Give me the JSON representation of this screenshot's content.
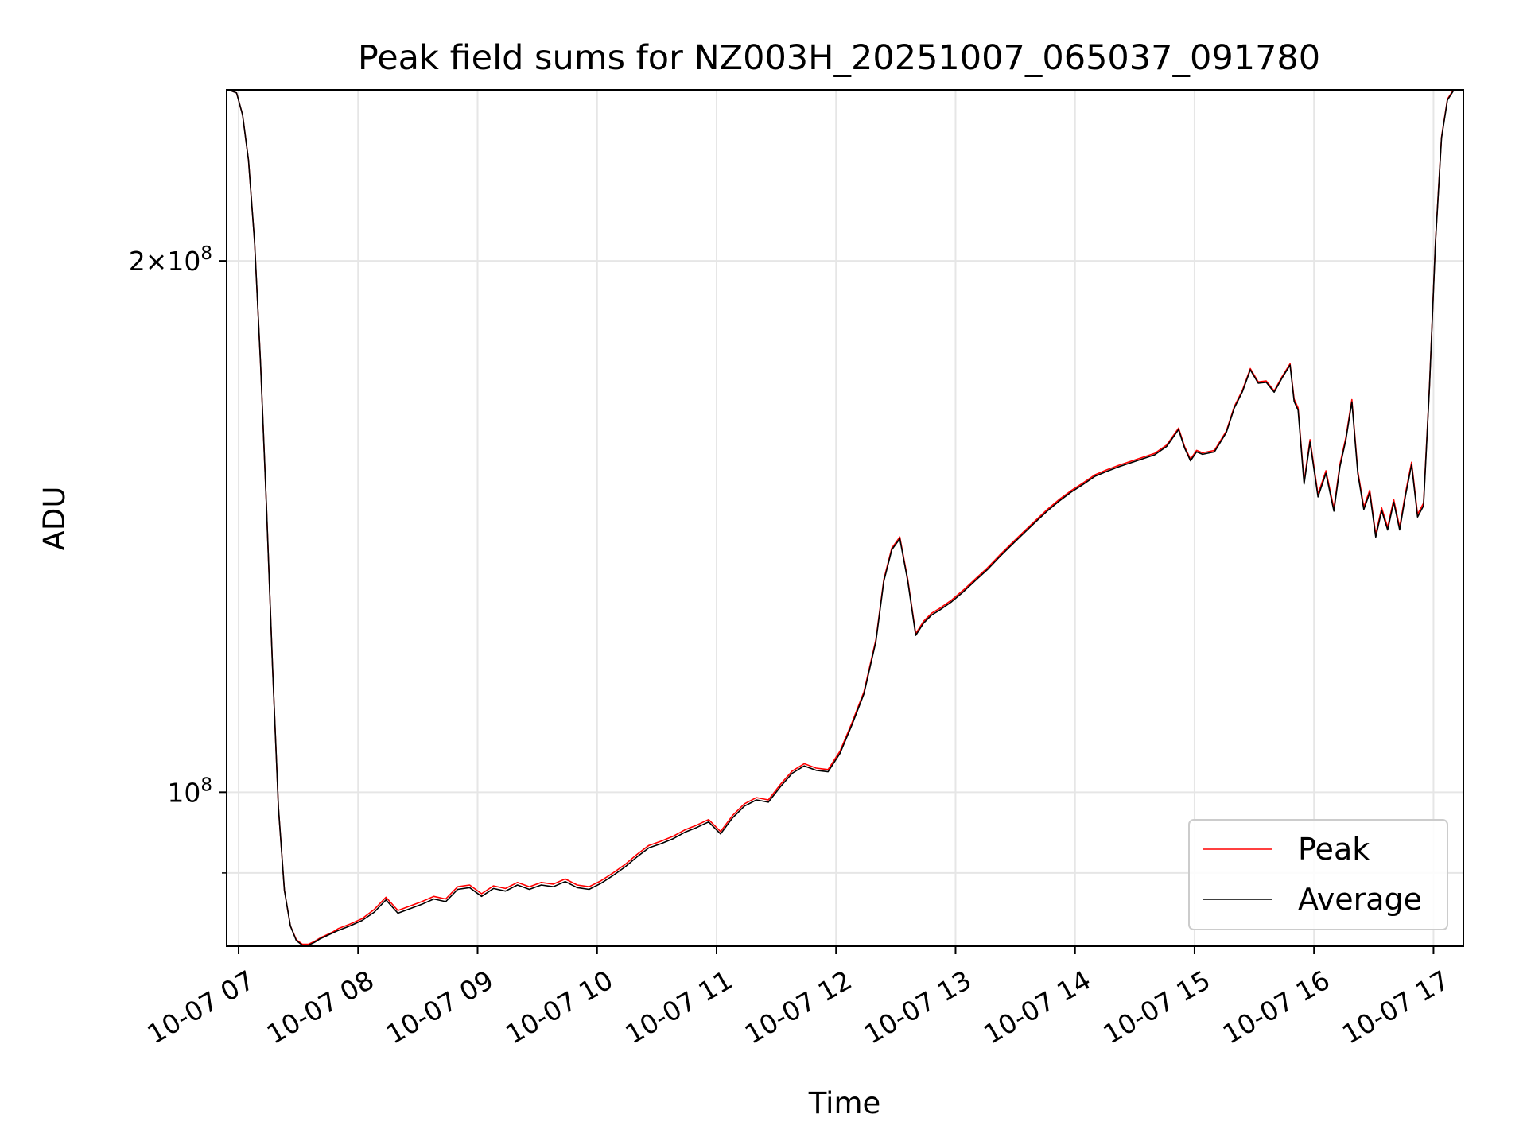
{
  "chart_data": {
    "type": "line",
    "title": "Peak field sums for NZ003H_20251007_065037_091780",
    "xlabel": "Time",
    "ylabel": "ADU",
    "y_scale": "log",
    "ylim": [
      81800000,
      250000000
    ],
    "xlim": [
      "2025-10-07 06:54",
      "2025-10-07 17:15"
    ],
    "grid": true,
    "legend_position": "lower right",
    "x_tick_labels": [
      "10-07 07",
      "10-07 08",
      "10-07 09",
      "10-07 10",
      "10-07 11",
      "10-07 12",
      "10-07 13",
      "10-07 14",
      "10-07 15",
      "10-07 16",
      "10-07 17"
    ],
    "y_tick_labels": [
      {
        "value": 200000000,
        "mantissa": "2",
        "times": "×",
        "base": "10",
        "exp": "8"
      },
      {
        "value": 100000000,
        "mantissa": "",
        "times": "",
        "base": "10",
        "exp": "8"
      }
    ],
    "y_minor_ticks": [
      90000000
    ],
    "series": [
      {
        "name": "Peak",
        "color": "#ff0000",
        "x": [
          "06:55",
          "06:59",
          "07:02",
          "07:05",
          "07:08",
          "07:11",
          "07:14",
          "07:17",
          "07:20",
          "07:23",
          "07:26",
          "07:29",
          "07:32",
          "07:35",
          "07:38",
          "07:41",
          "07:44",
          "07:47",
          "07:50",
          "07:56",
          "08:02",
          "08:08",
          "08:14",
          "08:20",
          "08:26",
          "08:32",
          "08:38",
          "08:44",
          "08:50",
          "08:56",
          "09:02",
          "09:08",
          "09:14",
          "09:20",
          "09:26",
          "09:32",
          "09:38",
          "09:44",
          "09:50",
          "09:56",
          "10:02",
          "10:08",
          "10:14",
          "10:20",
          "10:26",
          "10:32",
          "10:38",
          "10:44",
          "10:50",
          "10:56",
          "11:02",
          "11:08",
          "11:14",
          "11:20",
          "11:26",
          "11:32",
          "11:38",
          "11:44",
          "11:50",
          "11:56",
          "12:02",
          "12:08",
          "12:14",
          "12:20",
          "12:24",
          "12:28",
          "12:32",
          "12:36",
          "12:40",
          "12:44",
          "12:48",
          "12:52",
          "12:58",
          "13:04",
          "13:10",
          "13:16",
          "13:22",
          "13:28",
          "13:34",
          "13:40",
          "13:46",
          "13:52",
          "13:58",
          "14:04",
          "14:10",
          "14:16",
          "14:22",
          "14:28",
          "14:34",
          "14:40",
          "14:46",
          "14:52",
          "14:55",
          "14:58",
          "15:01",
          "15:04",
          "15:10",
          "15:16",
          "15:20",
          "15:24",
          "15:28",
          "15:32",
          "15:36",
          "15:40",
          "15:44",
          "15:48",
          "15:50",
          "15:52",
          "15:55",
          "15:58",
          "16:02",
          "16:06",
          "16:10",
          "16:13",
          "16:16",
          "16:19",
          "16:22",
          "16:25",
          "16:28",
          "16:31",
          "16:34",
          "16:37",
          "16:40",
          "16:43",
          "16:46",
          "16:49",
          "16:52",
          "16:55",
          "16:58",
          "17:01",
          "17:04",
          "17:07",
          "17:10",
          "17:13"
        ],
        "y": [
          250000000,
          249000000,
          242000000,
          228000000,
          205000000,
          175000000,
          145000000,
          118000000,
          98000000,
          88000000,
          84000000,
          82500000,
          82000000,
          82000000,
          82300000,
          82700000,
          83000000,
          83300000,
          83700000,
          84200000,
          84800000,
          85800000,
          87200000,
          85700000,
          86200000,
          86700000,
          87300000,
          87000000,
          88400000,
          88600000,
          87600000,
          88500000,
          88200000,
          88900000,
          88400000,
          88900000,
          88700000,
          89300000,
          88600000,
          88400000,
          89100000,
          90000000,
          91000000,
          92200000,
          93300000,
          93800000,
          94400000,
          95200000,
          95800000,
          96500000,
          95000000,
          97000000,
          98500000,
          99300000,
          99000000,
          101000000,
          102800000,
          103800000,
          103200000,
          103000000,
          105500000,
          109500000,
          114000000,
          122000000,
          132000000,
          137500000,
          139500000,
          132000000,
          123000000,
          125000000,
          126300000,
          127100000,
          128500000,
          130200000,
          132100000,
          134000000,
          136200000,
          138300000,
          140400000,
          142500000,
          144600000,
          146500000,
          148200000,
          149700000,
          151300000,
          152300000,
          153200000,
          154000000,
          154800000,
          155600000,
          157300000,
          160800000,
          157000000,
          154400000,
          156200000,
          155700000,
          156200000,
          160200000,
          165400000,
          168900000,
          173800000,
          170800000,
          171000000,
          168800000,
          172000000,
          174900000,
          167000000,
          165100000,
          150000000,
          158400000,
          147500000,
          152100000,
          144800000,
          153400000,
          158900000,
          166900000,
          152000000,
          145100000,
          148300000,
          140000000,
          144900000,
          141300000,
          146500000,
          141300000,
          147900000,
          153800000,
          143700000,
          145800000,
          170000000,
          205000000,
          235000000,
          247000000,
          250000000,
          250000000
        ]
      },
      {
        "name": "Average",
        "color": "#000000",
        "x": [
          "06:55",
          "06:59",
          "07:02",
          "07:05",
          "07:08",
          "07:11",
          "07:14",
          "07:17",
          "07:20",
          "07:23",
          "07:26",
          "07:29",
          "07:32",
          "07:35",
          "07:38",
          "07:41",
          "07:44",
          "07:47",
          "07:50",
          "07:56",
          "08:02",
          "08:08",
          "08:14",
          "08:20",
          "08:26",
          "08:32",
          "08:38",
          "08:44",
          "08:50",
          "08:56",
          "09:02",
          "09:08",
          "09:14",
          "09:20",
          "09:26",
          "09:32",
          "09:38",
          "09:44",
          "09:50",
          "09:56",
          "10:02",
          "10:08",
          "10:14",
          "10:20",
          "10:26",
          "10:32",
          "10:38",
          "10:44",
          "10:50",
          "10:56",
          "11:02",
          "11:08",
          "11:14",
          "11:20",
          "11:26",
          "11:32",
          "11:38",
          "11:44",
          "11:50",
          "11:56",
          "12:02",
          "12:08",
          "12:14",
          "12:20",
          "12:24",
          "12:28",
          "12:32",
          "12:36",
          "12:40",
          "12:44",
          "12:48",
          "12:52",
          "12:58",
          "13:04",
          "13:10",
          "13:16",
          "13:22",
          "13:28",
          "13:34",
          "13:40",
          "13:46",
          "13:52",
          "13:58",
          "14:04",
          "14:10",
          "14:16",
          "14:22",
          "14:28",
          "14:34",
          "14:40",
          "14:46",
          "14:52",
          "14:55",
          "14:58",
          "15:01",
          "15:04",
          "15:10",
          "15:16",
          "15:20",
          "15:24",
          "15:28",
          "15:32",
          "15:36",
          "15:40",
          "15:44",
          "15:48",
          "15:50",
          "15:52",
          "15:55",
          "15:58",
          "16:02",
          "16:06",
          "16:10",
          "16:13",
          "16:16",
          "16:19",
          "16:22",
          "16:25",
          "16:28",
          "16:31",
          "16:34",
          "16:37",
          "16:40",
          "16:43",
          "16:46",
          "16:49",
          "16:52",
          "16:55",
          "16:58",
          "17:01",
          "17:04",
          "17:07",
          "17:10",
          "17:13"
        ],
        "y": [
          250000000,
          249000000,
          242000000,
          228000000,
          205000000,
          175000000,
          145000000,
          118000000,
          98000000,
          88000000,
          84000000,
          82400000,
          81900000,
          81900000,
          82200000,
          82600000,
          82900000,
          83200000,
          83500000,
          84000000,
          84600000,
          85500000,
          86900000,
          85400000,
          85900000,
          86400000,
          87000000,
          86700000,
          88100000,
          88300000,
          87300000,
          88200000,
          87900000,
          88600000,
          88100000,
          88600000,
          88400000,
          89000000,
          88300000,
          88100000,
          88800000,
          89700000,
          90700000,
          91900000,
          93000000,
          93500000,
          94100000,
          94900000,
          95500000,
          96200000,
          94700000,
          96700000,
          98200000,
          99000000,
          98700000,
          100700000,
          102500000,
          103500000,
          102900000,
          102700000,
          105200000,
          109200000,
          113700000,
          121700000,
          131700000,
          137200000,
          139200000,
          131700000,
          122700000,
          124700000,
          126000000,
          126800000,
          128200000,
          129900000,
          131800000,
          133700000,
          135900000,
          138000000,
          140100000,
          142200000,
          144300000,
          146200000,
          147900000,
          149400000,
          151000000,
          152000000,
          152900000,
          153700000,
          154500000,
          155300000,
          157000000,
          160500000,
          156700000,
          154100000,
          155900000,
          155400000,
          155900000,
          159900000,
          165100000,
          168600000,
          173500000,
          170500000,
          170700000,
          168500000,
          171700000,
          174600000,
          166500000,
          164600000,
          149500000,
          157900000,
          147000000,
          151600000,
          144300000,
          152900000,
          158400000,
          166400000,
          151500000,
          144600000,
          147800000,
          139500000,
          144400000,
          140800000,
          146000000,
          140800000,
          147400000,
          153300000,
          143200000,
          145300000,
          169700000,
          204700000,
          234700000,
          246700000,
          249700000,
          249700000
        ]
      }
    ]
  }
}
